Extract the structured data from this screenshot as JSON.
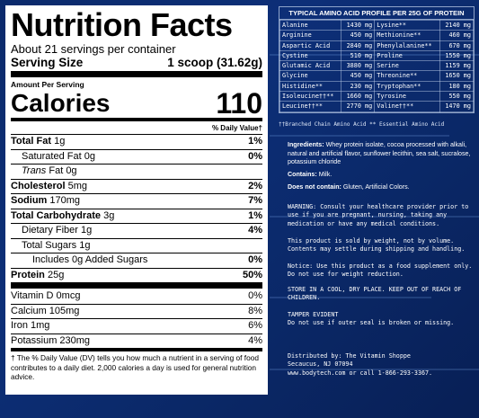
{
  "nutrition": {
    "title": "Nutrition Facts",
    "servings": "About 21 servings per container",
    "serving_size_label": "Serving Size",
    "serving_size_value": "1 scoop (31.62g)",
    "amount_per_serving": "Amount Per Serving",
    "calories_label": "Calories",
    "calories_value": "110",
    "dv_header": "% Daily Value†",
    "rows": [
      {
        "name": "Total Fat",
        "amount": " 1g",
        "pct": "1%"
      },
      {
        "name": "Saturated Fat",
        "amount": " 0g",
        "pct": "0%"
      },
      {
        "name": "Trans",
        "amount": " Fat 0g",
        "pct": ""
      },
      {
        "name": "Cholesterol",
        "amount": " 5mg",
        "pct": "2%"
      },
      {
        "name": "Sodium",
        "amount": " 170mg",
        "pct": "7%"
      },
      {
        "name": "Total Carbohydrate",
        "amount": " 3g",
        "pct": "1%"
      },
      {
        "name": "Dietary Fiber",
        "amount": " 1g",
        "pct": "4%"
      },
      {
        "name": "Total Sugars",
        "amount": " 1g",
        "pct": ""
      },
      {
        "name": "Includes 0g Added Sugars",
        "amount": "",
        "pct": "0%"
      },
      {
        "name": "Protein",
        "amount": " 25g",
        "pct": "50%"
      }
    ],
    "vitamins": [
      {
        "name": "Vitamin D 0mcg",
        "pct": "0%"
      },
      {
        "name": "Calcium 105mg",
        "pct": "8%"
      },
      {
        "name": "Iron 1mg",
        "pct": "6%"
      },
      {
        "name": "Potassium 230mg",
        "pct": "4%"
      }
    ],
    "footnote": "† The % Daily Value (DV) tells you how much a nutrient in a serving of food contributes to a daily diet. 2,000 calories a day is used for general nutrition advice."
  },
  "amino": {
    "header": "TYPICAL AMINO ACID PROFILE PER 25G OF PROTEIN",
    "rows": [
      [
        "Alanine",
        "1430 mg",
        "Lysine**",
        "2140 mg"
      ],
      [
        "Arginine",
        "450 mg",
        "Methionine**",
        "460 mg"
      ],
      [
        "Aspartic Acid",
        "2840 mg",
        "Phenylalanine**",
        "670 mg"
      ],
      [
        "Cystine",
        "510 mg",
        "Proline",
        "1550 mg"
      ],
      [
        "Glutamic Acid",
        "3880 mg",
        "Serine",
        "1159 mg"
      ],
      [
        "Glycine",
        "450 mg",
        "Threonine**",
        "1650 mg"
      ],
      [
        "Histidine**",
        "230 mg",
        "Tryptophan**",
        "180 mg"
      ],
      [
        "Isoleucine††**",
        "1660 mg",
        "Tyrosine",
        "550 mg"
      ],
      [
        "Leucine††**",
        "2770 mg",
        "Valine††**",
        "1470 mg"
      ]
    ],
    "legend": "††Branched Chain Amino Acid    ** Essential Amino Acid"
  },
  "info": {
    "ingredients_label": "Ingredients:",
    "ingredients": " Whey protein isolate, cocoa processed with alkali, natural and artificial flavor, sunflower lecithin, sea salt, sucralose, potassium chloride",
    "contains_label": "Contains:",
    "contains": " Milk.",
    "not_contain_label": "Does not contain:",
    "not_contain": " Gluten, Artificial Colors.",
    "warning": "WARNING: Consult your healthcare provider prior to use if you are pregnant, nursing, taking any medication or have any medical conditions.",
    "weight": "This product is sold by weight, not by volume. Contents may settle during shipping and handling.",
    "notice": "Notice: Use this product as a food supplement only. Do not use for weight reduction.",
    "store": "STORE IN A COOL, DRY PLACE. KEEP OUT OF REACH OF CHILDREN.",
    "tamper": "TAMPER EVIDENT\nDo not use if outer seal is broken or missing.",
    "distributed": "Distributed by: The Vitamin Shoppe\nSecaucus, NJ 07094\nwww.bodytech.com or call 1-866-293-3367."
  }
}
